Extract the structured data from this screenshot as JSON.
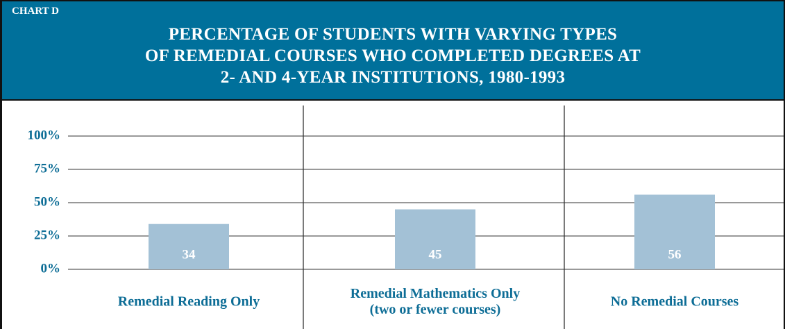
{
  "chart_data": {
    "type": "bar",
    "label": "CHART D",
    "title": "PERCENTAGE OF STUDENTS WITH VARYING TYPES\nOF REMEDIAL COURSES WHO COMPLETED DEGREES AT\n2- AND 4-YEAR INSTITUTIONS, 1980-1993",
    "categories": [
      "Remedial Reading Only",
      "Remedial Mathematics Only\n(two or fewer courses)",
      "No Remedial Courses"
    ],
    "values": [
      34,
      45,
      56
    ],
    "color": "#a3c1d6",
    "ylim": [
      0,
      100
    ],
    "yticks": [
      {
        "value": 0,
        "label": "0%"
      },
      {
        "value": 25,
        "label": "25%"
      },
      {
        "value": 50,
        "label": "50%"
      },
      {
        "value": 75,
        "label": "75%"
      },
      {
        "value": 100,
        "label": "100%"
      }
    ],
    "grid": true
  }
}
